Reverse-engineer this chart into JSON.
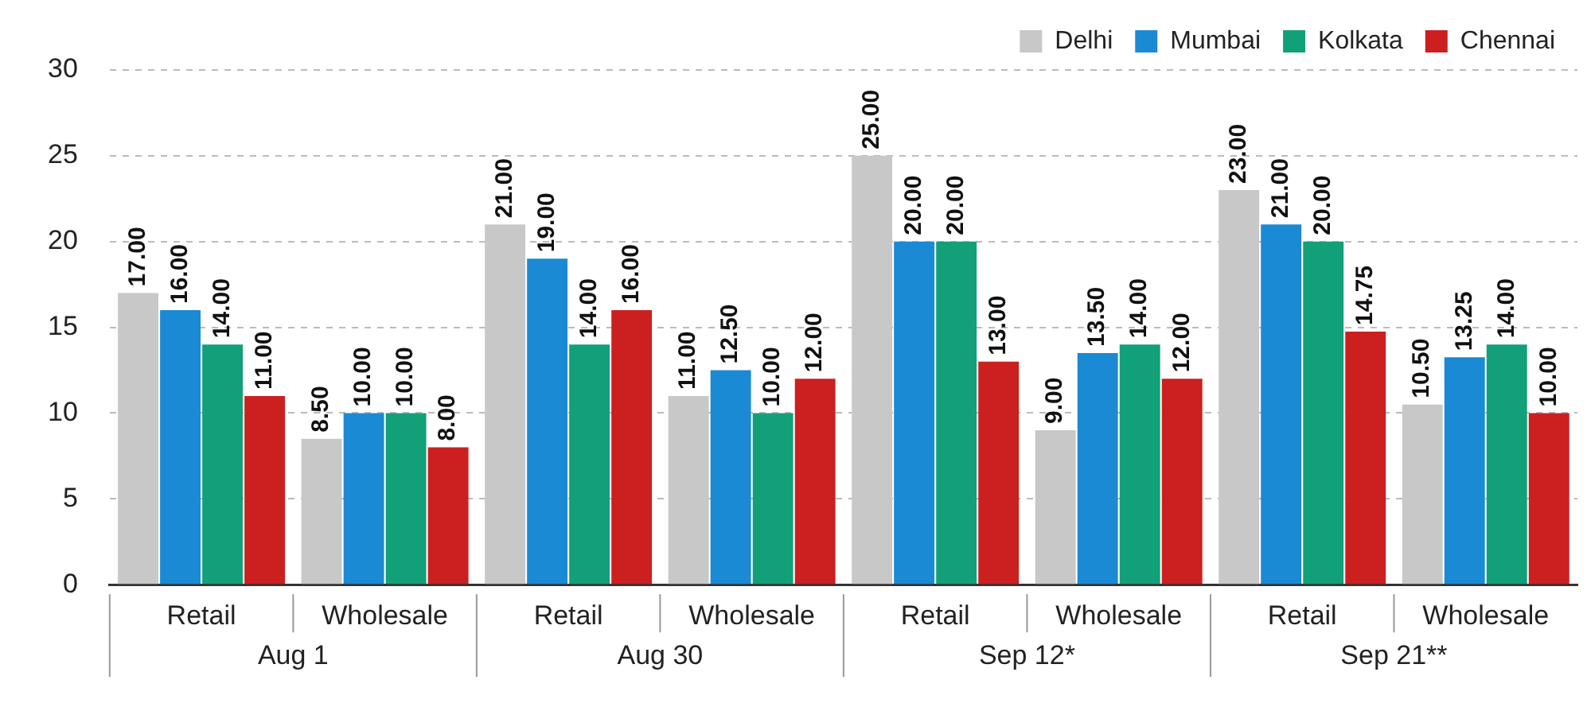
{
  "chart_data": {
    "type": "bar",
    "categories": [
      "Retail",
      "Wholesale",
      "Retail",
      "Wholesale",
      "Retail",
      "Wholesale",
      "Retail",
      "Wholesale"
    ],
    "annotations": [
      "Aug 1",
      "Aug 30",
      "Sep 12*",
      "Sep 21**"
    ],
    "series": [
      {
        "name": "Delhi",
        "color": "#c8c8c8",
        "values": [
          17,
          8.5,
          21,
          11,
          25,
          9,
          23,
          10.5
        ],
        "value_labels": [
          "17.00",
          "8.50",
          "21.00",
          "11.00",
          "25.00",
          "9.00",
          "23.00",
          "10.50"
        ]
      },
      {
        "name": "Mumbai",
        "color": "#1a8ad4",
        "values": [
          16,
          10,
          19,
          12.5,
          20,
          13.5,
          21,
          13.25
        ],
        "value_labels": [
          "16.00",
          "10.00",
          "19.00",
          "12.50",
          "20.00",
          "13.50",
          "21.00",
          "13.25"
        ]
      },
      {
        "name": "Kolkata",
        "color": "#12a079",
        "values": [
          14,
          10,
          14,
          10,
          20,
          14,
          20,
          14
        ],
        "value_labels": [
          "14.00",
          "10.00",
          "14.00",
          "10.00",
          "20.00",
          "14.00",
          "20.00",
          "14.00"
        ]
      },
      {
        "name": "Chennai",
        "color": "#cc1f1f",
        "values": [
          11,
          8,
          16,
          12,
          13,
          12,
          14.75,
          10
        ],
        "value_labels": [
          "11.00",
          "8.00",
          "16.00",
          "12.00",
          "13.00",
          "12.00",
          "14.75",
          "10.00"
        ]
      }
    ],
    "ylim": [
      0,
      30
    ],
    "yticks": [
      0,
      5,
      10,
      15,
      20,
      25,
      30
    ],
    "grid": "y",
    "legend": "top right"
  }
}
